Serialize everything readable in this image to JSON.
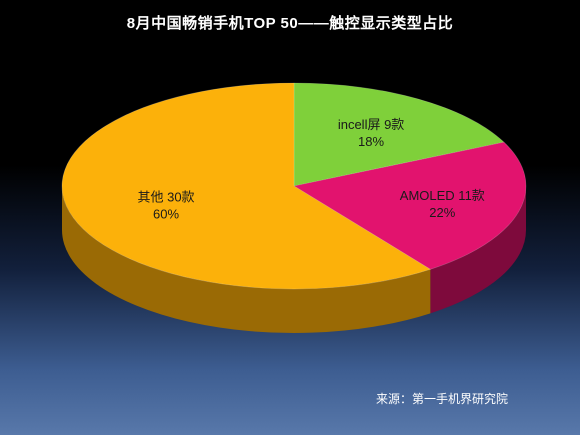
{
  "chart_data": {
    "type": "pie",
    "title": "8月中国畅销手机TOP 50——触控显示类型占比",
    "style": "3d",
    "slices": [
      {
        "name": "incell屏",
        "count_label": "9款",
        "value": 18,
        "percent_label": "18%",
        "color": "#7fd03a",
        "side_color": "#4f8a1c"
      },
      {
        "name": "AMOLED",
        "count_label": "11款",
        "value": 22,
        "percent_label": "22%",
        "color": "#e2136e",
        "side_color": "#7e0a3c"
      },
      {
        "name": "其他",
        "count_label": "30款",
        "value": 60,
        "percent_label": "60%",
        "color": "#fcb10a",
        "side_color": "#9a6a05"
      }
    ],
    "legend": "none"
  },
  "source_note": "来源：第一手机界研究院"
}
